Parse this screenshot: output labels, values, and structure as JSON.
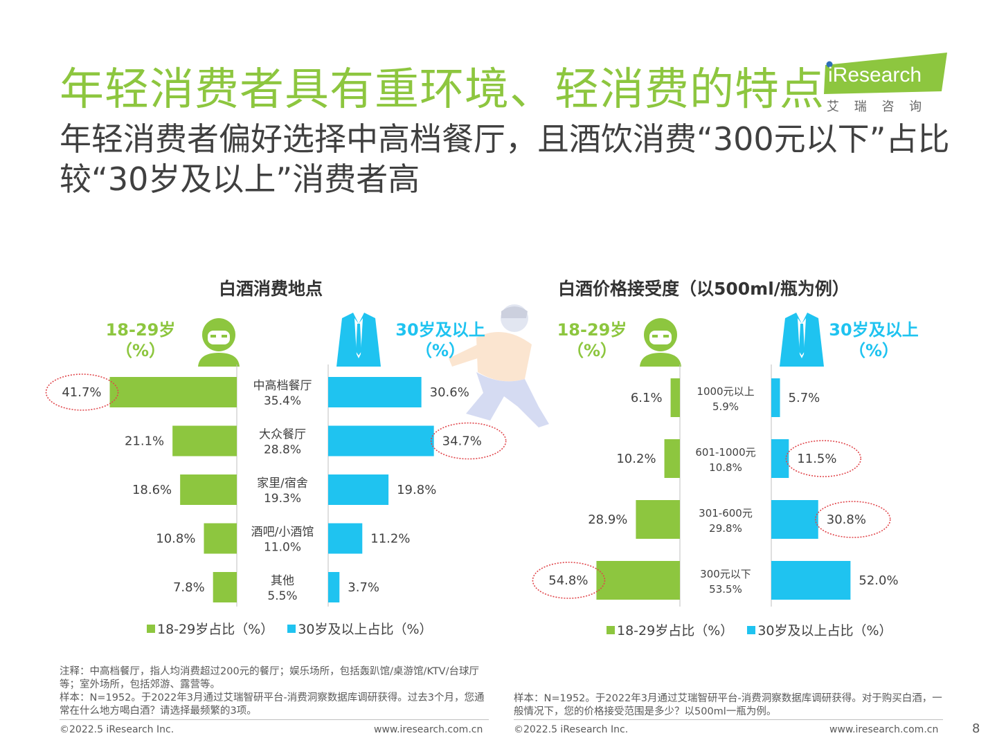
{
  "title": "年轻消费者具有重环境、轻消费的特点",
  "subtitle": "年轻消费者偏好选择中高档餐厅，且酒饮消费“300元以下”占比较“30岁及以上”消费者高",
  "logo": {
    "text": "iResearch",
    "subtext": "艾 瑞 咨 询"
  },
  "colors": {
    "green": "#8DC63F",
    "blue": "#1FC3F0",
    "title_green": "#8DC63F",
    "circle": "#E0454A"
  },
  "chart_data": [
    {
      "type": "bar",
      "orientation": "horizontal-butterfly",
      "title": "白酒消费地点",
      "left_header": "18-29岁",
      "right_header": "30岁及以上",
      "unit_header": "（%）",
      "categories": [
        "中高档餐厅",
        "大众餐厅",
        "家里/宿舍",
        "酒吧/小酒馆",
        "其他"
      ],
      "category_totals": [
        "35.4%",
        "28.8%",
        "19.3%",
        "11.0%",
        "5.5%"
      ],
      "series": [
        {
          "name": "18-29岁占比（%）",
          "values": [
            41.7,
            21.1,
            18.6,
            10.8,
            7.8
          ],
          "labels": [
            "41.7%",
            "21.1%",
            "18.6%",
            "10.8%",
            "7.8%"
          ]
        },
        {
          "name": "30岁及以上占比（%）",
          "values": [
            30.6,
            34.7,
            19.8,
            11.2,
            3.7
          ],
          "labels": [
            "30.6%",
            "34.7%",
            "19.8%",
            "11.2%",
            "3.7%"
          ]
        }
      ],
      "highlighted": [
        "41.7%",
        "34.7%"
      ]
    },
    {
      "type": "bar",
      "orientation": "horizontal-butterfly",
      "title": "白酒价格接受度（以500ml/瓶为例）",
      "left_header": "18-29岁",
      "right_header": "30岁及以上",
      "unit_header": "（%）",
      "categories": [
        "1000元以上",
        "601-1000元",
        "301-600元",
        "300元以下"
      ],
      "category_totals": [
        "5.9%",
        "10.8%",
        "29.8%",
        "53.5%"
      ],
      "series": [
        {
          "name": "18-29岁占比（%）",
          "values": [
            6.1,
            10.2,
            28.9,
            54.8
          ],
          "labels": [
            "6.1%",
            "10.2%",
            "28.9%",
            "54.8%"
          ]
        },
        {
          "name": "30岁及以上占比（%）",
          "values": [
            5.7,
            11.5,
            30.8,
            52.0
          ],
          "labels": [
            "5.7%",
            "11.5%",
            "30.8%",
            "52.0%"
          ]
        }
      ],
      "highlighted": [
        "11.5%",
        "30.8%",
        "54.8%"
      ]
    }
  ],
  "notes_left": {
    "line1": "注释：中高档餐厅，指人均消费超过200元的餐厅；娱乐场所，包括轰趴馆/桌游馆/KTV/台球厅等；室外场所，包括郊游、露营等。",
    "line2": "样本：N=1952。于2022年3月通过艾瑞智研平台-消费洞察数据库调研获得。过去3个月，您通常在什么地方喝白酒？请选择最频繁的3项。"
  },
  "notes_right": {
    "line1": "样本：N=1952。于2022年3月通过艾瑞智研平台-消费洞察数据库调研获得。对于购买白酒，一般情况下，您的价格接受范围是多少？以500ml一瓶为例。"
  },
  "footer": {
    "copyright_left": "©2022.5 iResearch Inc.",
    "url_left": "www.iresearch.com.cn",
    "copyright_right": "©2022.5 iResearch Inc.",
    "url_right": "www.iresearch.com.cn",
    "page_number": "8"
  }
}
